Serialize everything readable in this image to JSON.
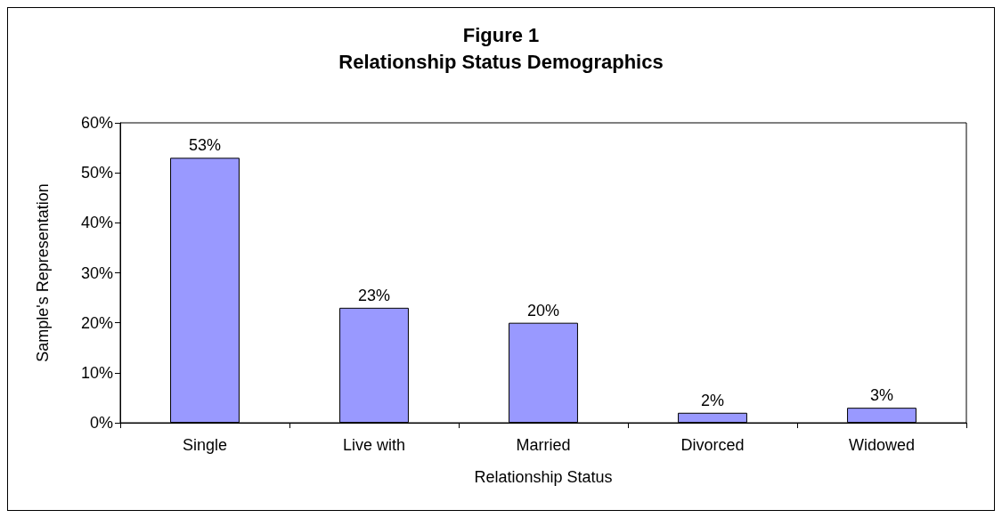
{
  "chart_data": {
    "type": "bar",
    "title": "Figure 1",
    "subtitle": "Relationship Status Demographics",
    "xlabel": "Relationship Status",
    "ylabel": "Sample's Representation",
    "categories": [
      "Single",
      "Live with",
      "Married",
      "Divorced",
      "Widowed"
    ],
    "values": [
      53,
      23,
      20,
      2,
      3
    ],
    "value_labels": [
      "53%",
      "23%",
      "20%",
      "2%",
      "3%"
    ],
    "color": "#9999ff",
    "ylim": [
      0,
      60
    ],
    "yticks": [
      {
        "value": 0,
        "label": "0%"
      },
      {
        "value": 10,
        "label": "10%"
      },
      {
        "value": 20,
        "label": "20%"
      },
      {
        "value": 30,
        "label": "30%"
      },
      {
        "value": 40,
        "label": "40%"
      },
      {
        "value": 50,
        "label": "50%"
      },
      {
        "value": 60,
        "label": "60%"
      }
    ]
  }
}
